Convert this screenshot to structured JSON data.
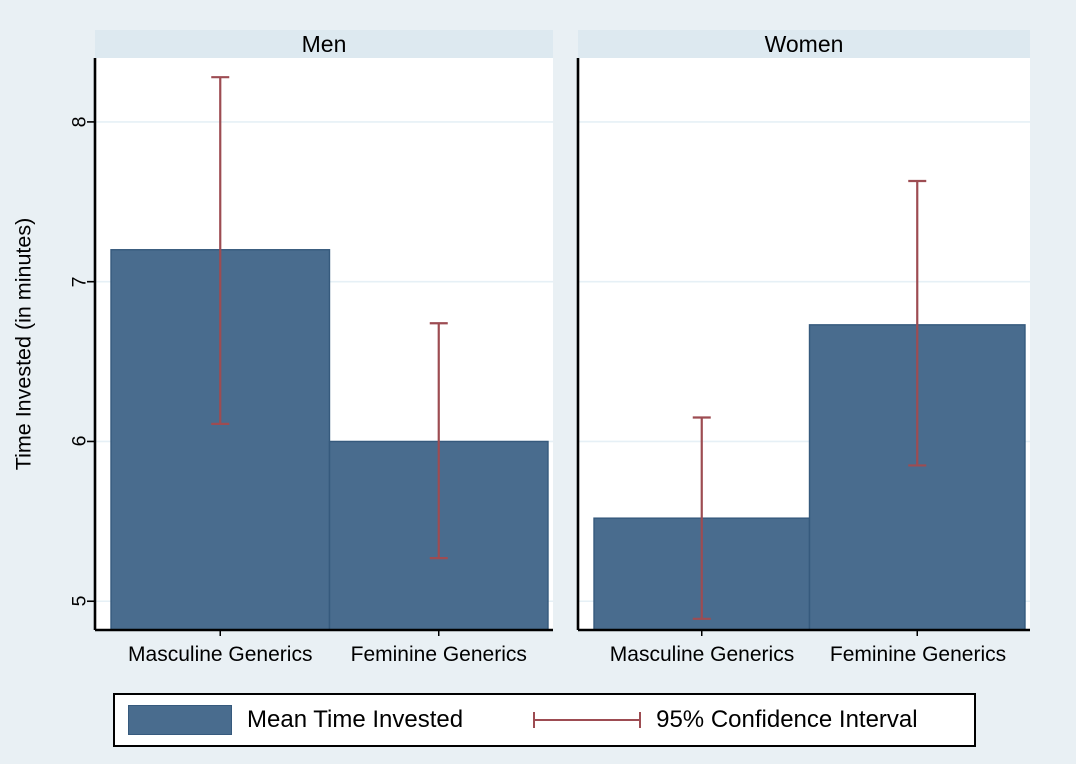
{
  "figure": {
    "background": "#e9f0f4",
    "panel_header_bg": "#dde9f0",
    "plot_bg": "#ffffff",
    "grid_color": "#e6f0f6",
    "bar_fill": "#496c8e",
    "bar_border": "#365a7d",
    "ci_color": "#9d4c52",
    "axis_color": "#000000",
    "y_axis_title": "Time Invested (in minutes)"
  },
  "chart_data": {
    "type": "bar",
    "title": "",
    "ylabel": "Time Invested (in minutes)",
    "xlabel": "",
    "yticks": [
      5,
      6,
      7,
      8
    ],
    "ylim": [
      4.82,
      8.4
    ],
    "grid": true,
    "legend_position": "bottom",
    "panels": [
      {
        "title": "Men",
        "categories": [
          "Masculine Generics",
          "Feminine Generics"
        ],
        "values": [
          7.2,
          6.0
        ],
        "ci_low": [
          6.11,
          5.27
        ],
        "ci_high": [
          8.28,
          6.74
        ]
      },
      {
        "title": "Women",
        "categories": [
          "Masculine Generics",
          "Feminine Generics"
        ],
        "values": [
          5.52,
          6.73
        ],
        "ci_low": [
          4.89,
          5.85
        ],
        "ci_high": [
          6.15,
          7.63
        ]
      }
    ],
    "legend": [
      {
        "symbol": "bar",
        "label": "Mean Time Invested"
      },
      {
        "symbol": "error-bar",
        "label": "95% Confidence Interval"
      }
    ]
  }
}
